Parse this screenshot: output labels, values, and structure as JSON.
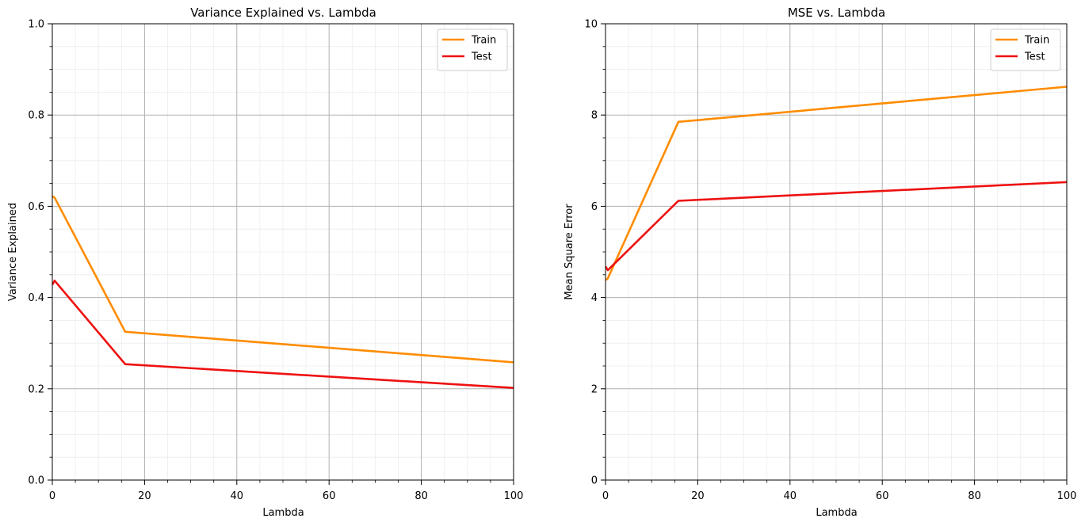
{
  "chart_data": [
    {
      "type": "line",
      "title": "Variance Explained vs. Lambda",
      "xlabel": "Lambda",
      "ylabel": "Variance Explained",
      "xlim": [
        0,
        100
      ],
      "ylim": [
        0,
        1.0
      ],
      "xticks": [
        0,
        20,
        40,
        60,
        80,
        100
      ],
      "xtick_labels": [
        "0",
        "20",
        "40",
        "60",
        "80",
        "100"
      ],
      "yticks": [
        0,
        0.2,
        0.4,
        0.6,
        0.8,
        1.0
      ],
      "ytick_labels": [
        "0.0",
        "0.2",
        "0.4",
        "0.6",
        "0.8",
        "1.0"
      ],
      "x_minor_step": 5,
      "y_minor_step": 0.05,
      "grid": true,
      "legend_position": "top-right",
      "series": [
        {
          "name": "Train",
          "color": "#ff8c00",
          "x": [
            0,
            0.5,
            15.8,
            100
          ],
          "y": [
            0.622,
            0.619,
            0.325,
            0.258
          ]
        },
        {
          "name": "Test",
          "color": "#ee1111",
          "x": [
            0,
            0.5,
            15.8,
            100
          ],
          "y": [
            0.428,
            0.437,
            0.254,
            0.202
          ]
        }
      ]
    },
    {
      "type": "line",
      "title": "MSE vs. Lambda",
      "xlabel": "Lambda",
      "ylabel": "Mean Square Error",
      "xlim": [
        0,
        100
      ],
      "ylim": [
        0,
        10
      ],
      "xticks": [
        0,
        20,
        40,
        60,
        80,
        100
      ],
      "xtick_labels": [
        "0",
        "20",
        "40",
        "60",
        "80",
        "100"
      ],
      "yticks": [
        0,
        2,
        4,
        6,
        8,
        10
      ],
      "ytick_labels": [
        "0",
        "2",
        "4",
        "6",
        "8",
        "10"
      ],
      "x_minor_step": 5,
      "y_minor_step": 0.5,
      "grid": true,
      "legend_position": "top-right",
      "series": [
        {
          "name": "Train",
          "color": "#ff8c00",
          "x": [
            0,
            0.5,
            15.8,
            100
          ],
          "y": [
            4.38,
            4.42,
            7.85,
            8.62
          ]
        },
        {
          "name": "Test",
          "color": "#ee1111",
          "x": [
            0,
            0.5,
            15.8,
            100
          ],
          "y": [
            4.68,
            4.6,
            6.12,
            6.53
          ]
        }
      ]
    }
  ]
}
